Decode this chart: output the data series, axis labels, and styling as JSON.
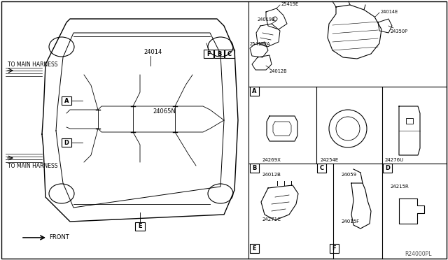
{
  "bg_color": "#ffffff",
  "line_color": "#000000",
  "part_number_watermark": "R24000PL",
  "to_main_harness": "TO MAIN HARNESS",
  "front_label": "FRONT",
  "part_24014": "24014",
  "part_24065N": "24065N",
  "section_A_parts": [
    "25419E",
    "24019B",
    "25419EA",
    "24012B",
    "24014E",
    "24350P"
  ],
  "section_B_parts": [
    "24269X"
  ],
  "section_C_parts": [
    "24254E"
  ],
  "section_D_parts": [
    "24276U"
  ],
  "section_E_parts": [
    "24012B",
    "24271C"
  ],
  "section_F_parts": [
    "24059",
    "24015F"
  ],
  "section_extra_parts": [
    "24215R"
  ],
  "callout_letters": [
    "A",
    "B",
    "C",
    "D",
    "E",
    "F"
  ]
}
